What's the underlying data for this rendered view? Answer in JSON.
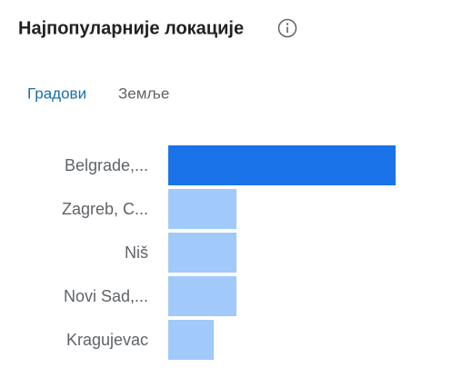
{
  "header": {
    "title": "Најпопуларније локације"
  },
  "tabs": [
    "Градови",
    "Земље"
  ],
  "chart_data": {
    "type": "bar",
    "orientation": "horizontal",
    "categories": [
      "Belgrade,...",
      "Zagreb, C...",
      "Niš",
      "Novi Sad,...",
      "Kragujevac"
    ],
    "values": [
      50,
      15,
      15,
      15,
      10
    ],
    "colors": [
      "#1a73e8",
      "#a1c9f9",
      "#a1c9f9",
      "#a1c9f9",
      "#a1c9f9"
    ]
  }
}
